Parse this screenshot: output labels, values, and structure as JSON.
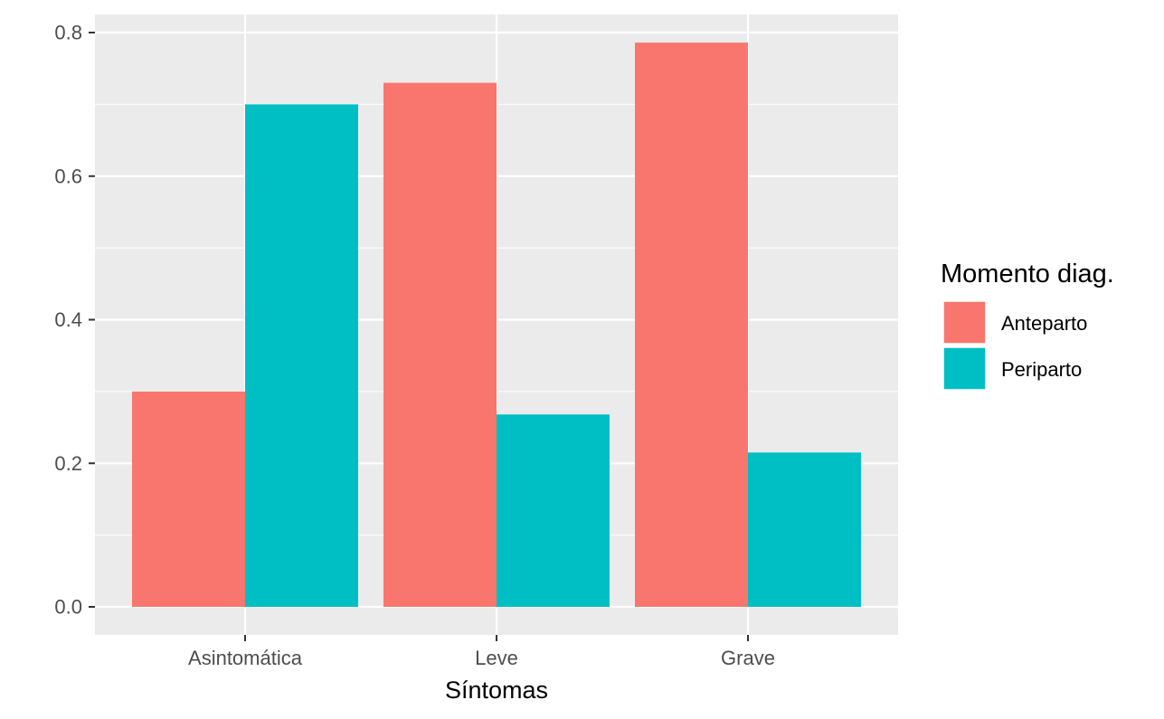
{
  "chart_data": {
    "type": "bar",
    "categories": [
      "Asintomática",
      "Leve",
      "Grave"
    ],
    "series": [
      {
        "name": "Anteparto",
        "values": [
          0.3,
          0.73,
          0.786
        ],
        "color": "#F8766D"
      },
      {
        "name": "Periparto",
        "values": [
          0.7,
          0.268,
          0.215
        ],
        "color": "#00BFC4"
      }
    ],
    "title": "",
    "xlabel": "Síntomas",
    "ylabel": "",
    "ylim": [
      0,
      0.8
    ],
    "yticks": [
      0.0,
      0.2,
      0.4,
      0.6,
      0.8
    ],
    "ytick_labels": [
      "0.0",
      "0.2",
      "0.4",
      "0.6",
      "0.8"
    ],
    "grid": true,
    "legend": {
      "title": "Momento diag.",
      "position": "right"
    },
    "colors": {
      "panel_background": "#EBEBEB",
      "grid": "#FFFFFF",
      "anteparto": "#F8766D",
      "periparto": "#00BFC4"
    }
  }
}
